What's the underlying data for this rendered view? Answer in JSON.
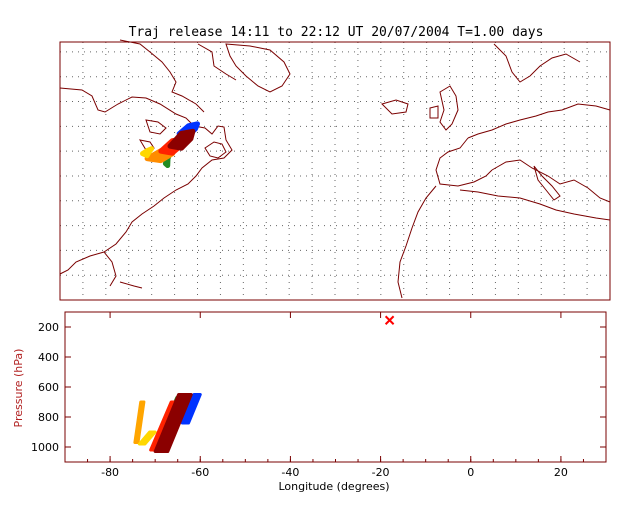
{
  "title": "Traj release 14:11 to 22:12 UT 20/07/2004    T=1.00 days",
  "chart_data": [
    {
      "type": "map",
      "projection": "lon-lat",
      "lon_range": [
        -90,
        30
      ],
      "lat_range": [
        10,
        62
      ],
      "grid": "dotted, 5 deg",
      "trajectory_clusters": [
        {
          "color": "#0033ff",
          "lon": [
            -64,
            -60
          ],
          "lat": [
            43.5,
            45.5
          ]
        },
        {
          "color": "#228b22",
          "lon": [
            -67,
            -66
          ],
          "lat": [
            37.5,
            39.5
          ]
        },
        {
          "color": "#ff8c00",
          "lon": [
            -71,
            -65
          ],
          "lat": [
            38.5,
            40.5
          ]
        },
        {
          "color": "#ffd700",
          "lon": [
            -72,
            -70
          ],
          "lat": [
            39.5,
            40.5
          ]
        },
        {
          "color": "#ff2200",
          "lon": [
            -68,
            -63
          ],
          "lat": [
            40,
            42.5
          ]
        },
        {
          "color": "#8b0000",
          "lon": [
            -66,
            -61
          ],
          "lat": [
            41,
            44
          ]
        }
      ]
    },
    {
      "type": "scatter",
      "xlabel": "Longitude  (degrees)",
      "ylabel": "Pressure  (hPa)",
      "xlim": [
        -90,
        30
      ],
      "ylim": [
        1100,
        100
      ],
      "xticks": [
        -80,
        -60,
        -40,
        -20,
        0,
        20
      ],
      "yticks": [
        200,
        400,
        600,
        800,
        1000
      ],
      "marker": {
        "symbol": "x",
        "color": "#ff0000",
        "lon": -18,
        "pressure": 155
      },
      "series": [
        {
          "color": "#ffa500",
          "lon": [
            -74.5,
            -72.5
          ],
          "pressure": [
            700,
            970
          ]
        },
        {
          "color": "#ffd700",
          "lon": [
            -73.5,
            -70.0
          ],
          "pressure": [
            900,
            980
          ]
        },
        {
          "color": "#228b22",
          "lon": [
            -66.5,
            -64.5
          ],
          "pressure": [
            670,
            760
          ]
        },
        {
          "color": "#0033ff",
          "lon": [
            -64.0,
            -60.0
          ],
          "pressure": [
            650,
            840
          ]
        },
        {
          "color": "#ff2200",
          "lon": [
            -71.0,
            -64.0
          ],
          "pressure": [
            700,
            1020
          ]
        },
        {
          "color": "#8b0000",
          "lon": [
            -70.0,
            -62.0
          ],
          "pressure": [
            650,
            1030
          ]
        }
      ]
    }
  ]
}
